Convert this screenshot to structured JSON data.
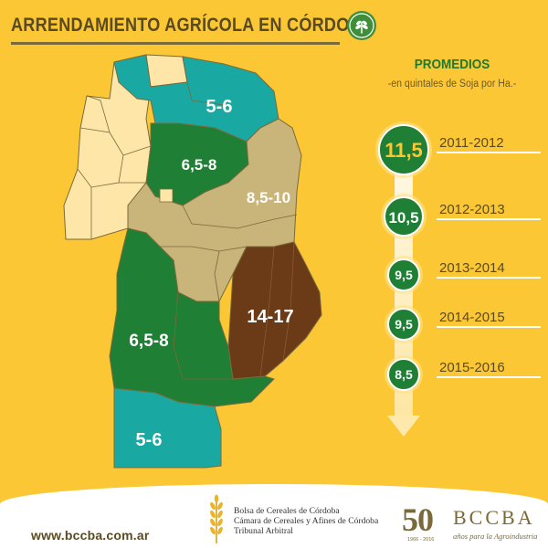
{
  "header": {
    "title": "ARRENDAMIENTO AGRÍCOLA EN CÓRDOBA",
    "icon": "wheat-badge-icon",
    "accent_color": "#3f8f3a"
  },
  "map": {
    "colors": {
      "background": "#fcc734",
      "cream": "#fde6a8",
      "teal": "#1aa9a2",
      "green": "#1f7f34",
      "tan": "#c9b57a",
      "brown": "#6b3a17",
      "border": "#7a6a3a"
    },
    "regions": [
      {
        "id": "north",
        "label": "5-6",
        "color": "teal"
      },
      {
        "id": "north-center",
        "label": "6,5-8",
        "color": "green"
      },
      {
        "id": "center-east",
        "label": "8,5-10",
        "color": "tan"
      },
      {
        "id": "southeast",
        "label": "14-17",
        "color": "brown"
      },
      {
        "id": "south-center",
        "label": "6,5-8",
        "color": "green"
      },
      {
        "id": "south",
        "label": "5-6",
        "color": "teal"
      }
    ]
  },
  "promedios": {
    "title": "PROMEDIOS",
    "subtitle": "-en quintales de Soja por Ha.-",
    "entries": [
      {
        "year": "2011-2012",
        "value": "11,5",
        "highlight": true
      },
      {
        "year": "2012-2013",
        "value": "10,5",
        "highlight": false
      },
      {
        "year": "2013-2014",
        "value": "9,5",
        "highlight": false
      },
      {
        "year": "2014-2015",
        "value": "9,5",
        "highlight": false
      },
      {
        "year": "2015-2016",
        "value": "8,5",
        "highlight": false
      }
    ]
  },
  "footer": {
    "url": "www.bccba.com.ar",
    "entities": [
      "Bolsa de Cereales de Córdoba",
      "Cámara de Cereales y Afines de Córdoba",
      "Tribunal Arbitral"
    ],
    "logo_number": "50",
    "logo_years": "1966 - 2016",
    "logo_name": "BCCBA",
    "logo_tagline": "años para la Agroindustria"
  }
}
